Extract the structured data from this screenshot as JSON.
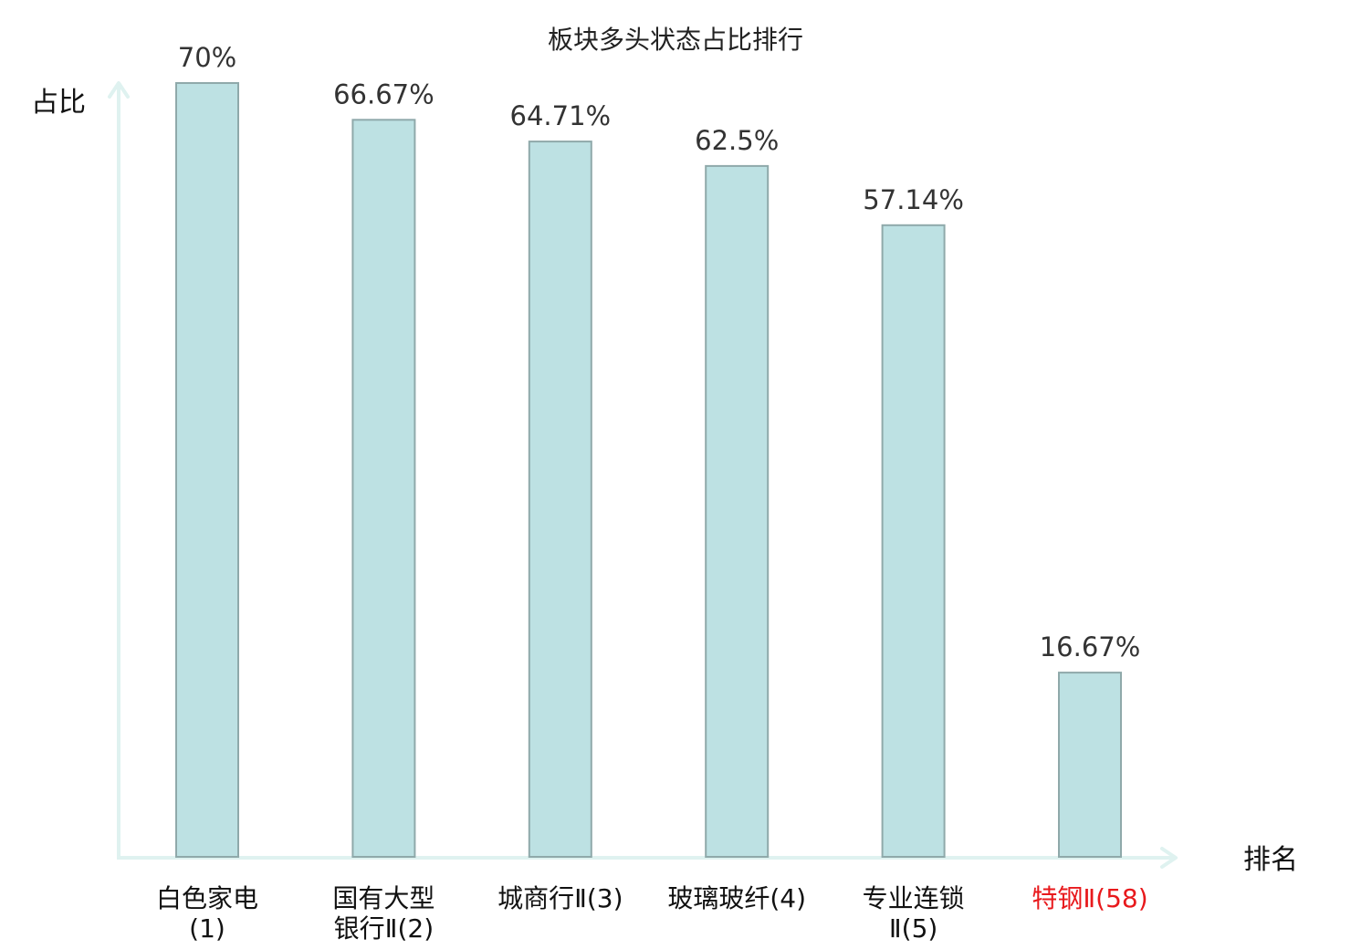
{
  "chart_data": {
    "type": "bar",
    "title": "板块多头状态占比排行",
    "ylabel": "占比",
    "xlabel": "排名",
    "categories": [
      [
        "白色家电",
        "(1)"
      ],
      [
        "国有大型",
        "银行Ⅱ(2)"
      ],
      [
        "城商行Ⅱ(3)"
      ],
      [
        "玻璃玻纤(4)"
      ],
      [
        "专业连锁",
        "Ⅱ(5)"
      ],
      [
        "特钢Ⅱ(58)"
      ]
    ],
    "values": [
      70,
      66.67,
      64.71,
      62.5,
      57.14,
      16.67
    ],
    "value_labels": [
      "70%",
      "66.67%",
      "64.71%",
      "62.5%",
      "57.14%",
      "16.67%"
    ],
    "ylim": [
      0,
      70
    ],
    "grid": false,
    "highlight_index": 5,
    "colors": {
      "bar_fill": "#bde1e3",
      "bar_stroke": "#8fa9aa",
      "axis": "#dff2f0",
      "highlight_text": "#e8191c",
      "normal_text": "#111111"
    }
  }
}
